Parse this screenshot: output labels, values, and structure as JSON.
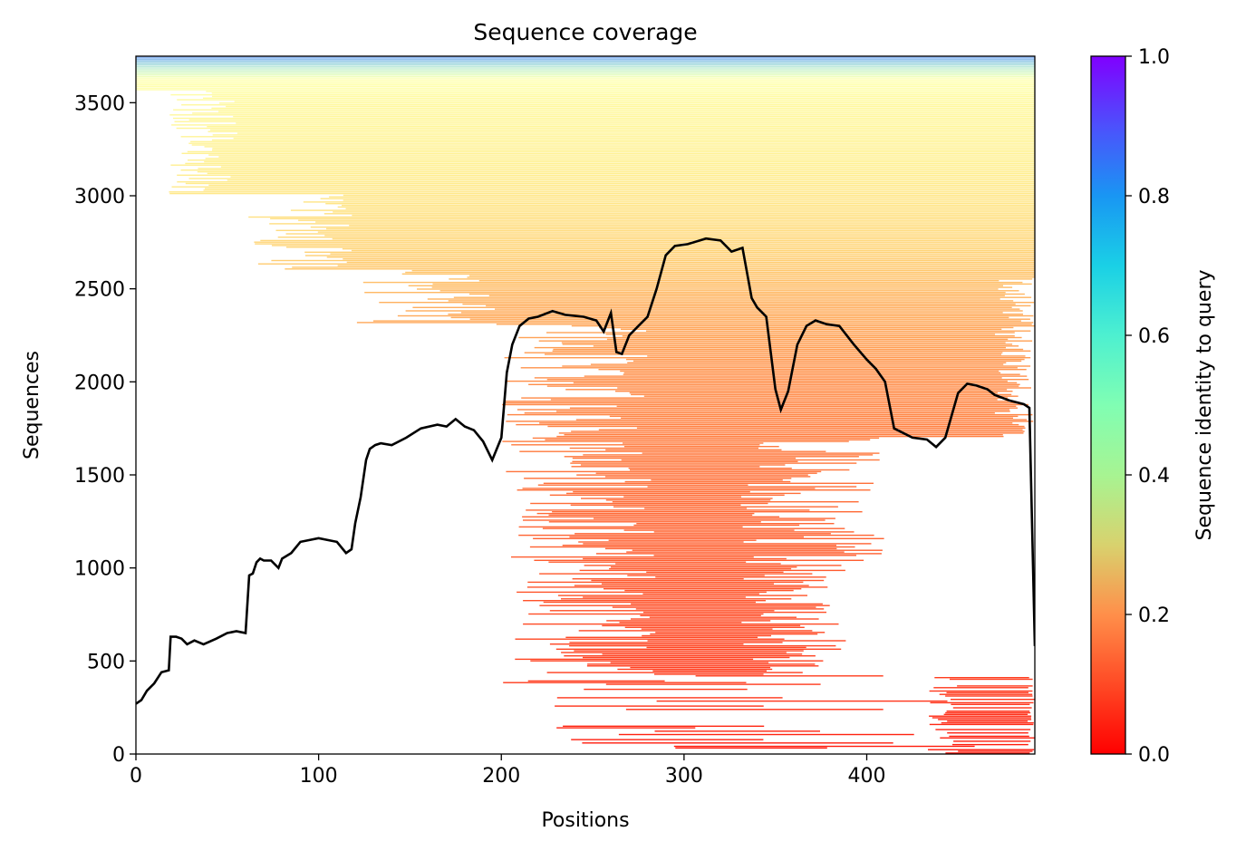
{
  "chart_data": {
    "type": "heatmap",
    "title": "Sequence coverage",
    "xlabel": "Positions",
    "ylabel": "Sequences",
    "xlim": [
      0,
      492
    ],
    "ylim": [
      0,
      3750
    ],
    "xticks": [
      0,
      100,
      200,
      300,
      400
    ],
    "yticks": [
      0,
      500,
      1000,
      1500,
      2000,
      2500,
      3000,
      3500
    ],
    "colorbar": {
      "label": "Sequence identity to query",
      "range": [
        0.0,
        1.0
      ],
      "ticks": [
        "0.0",
        "0.2",
        "0.4",
        "0.6",
        "0.8",
        "1.0"
      ],
      "colormap": "rainbow_r"
    },
    "coverage_line": {
      "name": "coverage",
      "color": "#000000",
      "x": [
        0,
        3,
        6,
        10,
        14,
        18,
        19,
        22,
        25,
        28,
        32,
        37,
        44,
        50,
        55,
        60,
        62,
        64,
        66,
        68,
        70,
        74,
        78,
        80,
        85,
        90,
        95,
        100,
        105,
        110,
        115,
        118,
        120,
        123,
        126,
        128,
        131,
        134,
        140,
        148,
        156,
        165,
        170,
        175,
        180,
        185,
        190,
        195,
        200,
        203,
        206,
        210,
        215,
        220,
        228,
        235,
        245,
        252,
        256,
        260,
        263,
        266,
        270,
        275,
        280,
        285,
        290,
        295,
        302,
        312,
        320,
        326,
        332,
        337,
        340,
        345,
        350,
        353,
        357,
        362,
        367,
        372,
        378,
        385,
        393,
        400,
        405,
        410,
        415,
        425,
        433,
        438,
        443,
        450,
        455,
        460,
        466,
        470,
        478,
        486,
        489,
        492
      ],
      "y": [
        270,
        290,
        340,
        380,
        440,
        450,
        630,
        630,
        620,
        590,
        610,
        590,
        620,
        650,
        660,
        650,
        960,
        970,
        1030,
        1050,
        1040,
        1040,
        1000,
        1050,
        1080,
        1140,
        1150,
        1160,
        1150,
        1140,
        1080,
        1100,
        1240,
        1380,
        1580,
        1640,
        1660,
        1670,
        1660,
        1700,
        1750,
        1770,
        1760,
        1800,
        1760,
        1740,
        1680,
        1580,
        1700,
        2050,
        2200,
        2300,
        2340,
        2350,
        2380,
        2360,
        2350,
        2330,
        2270,
        2370,
        2160,
        2150,
        2250,
        2300,
        2350,
        2500,
        2680,
        2730,
        2740,
        2770,
        2760,
        2700,
        2720,
        2450,
        2400,
        2350,
        1960,
        1850,
        1950,
        2200,
        2300,
        2330,
        2310,
        2300,
        2200,
        2120,
        2070,
        2000,
        1750,
        1700,
        1690,
        1650,
        1700,
        1940,
        1990,
        1980,
        1960,
        1930,
        1900,
        1880,
        1860,
        580
      ]
    }
  }
}
